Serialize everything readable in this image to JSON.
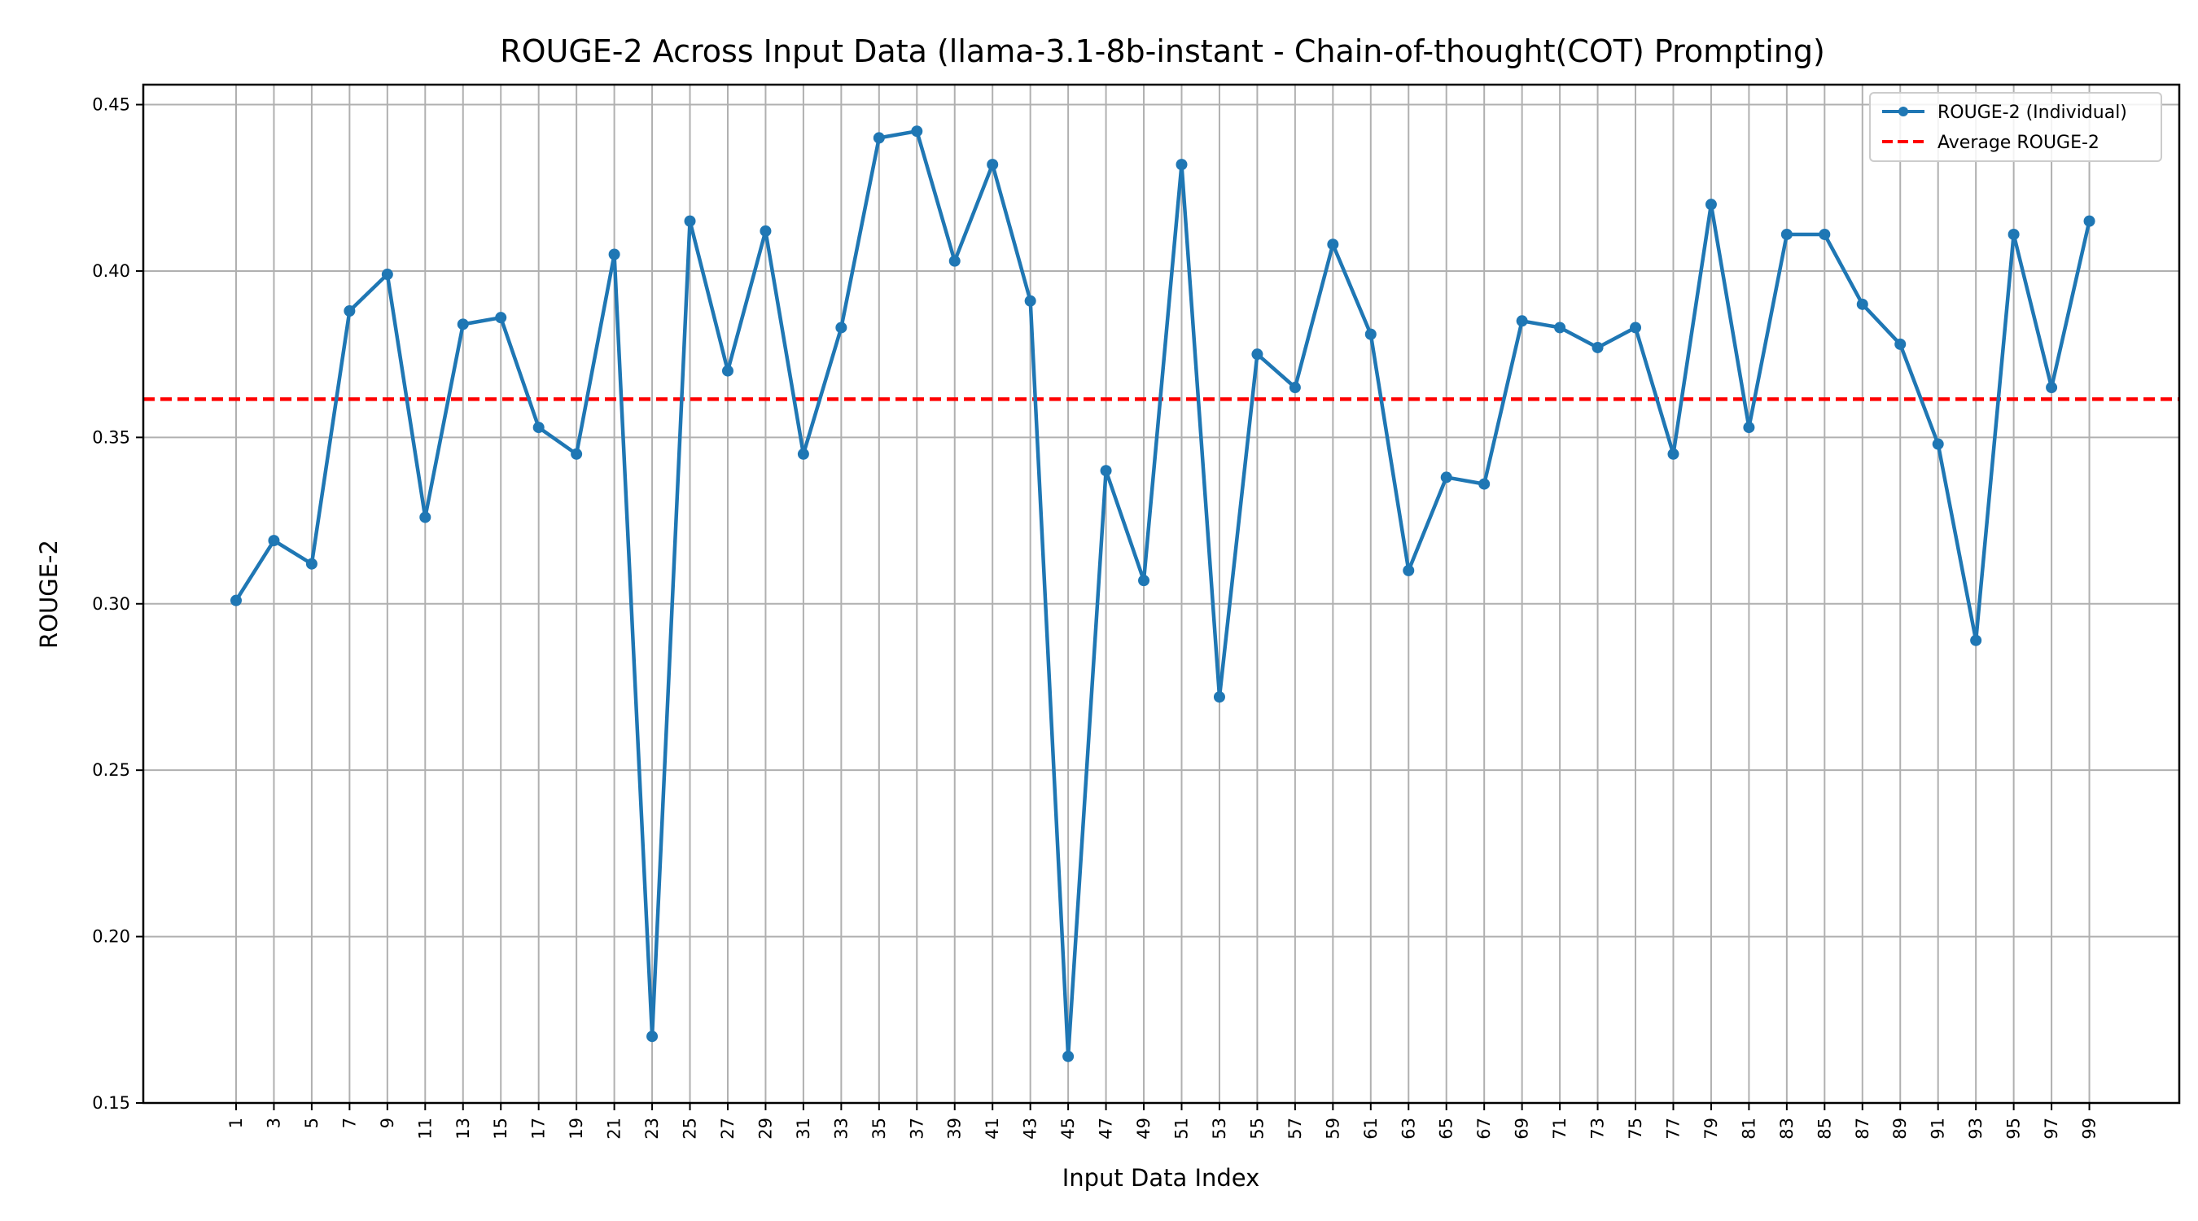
{
  "chart_data": {
    "type": "line",
    "title": "ROUGE-2 Across Input Data (llama-3.1-8b-instant - Chain-of-thought(COT) Prompting)",
    "xlabel": "Input Data Index",
    "ylabel": "ROUGE-2",
    "ylim": [
      0.15,
      0.456
    ],
    "yticks": [
      "0.15",
      "0.20",
      "0.25",
      "0.30",
      "0.35",
      "0.40",
      "0.45"
    ],
    "xticks": [
      "1",
      "3",
      "5",
      "7",
      "9",
      "11",
      "13",
      "15",
      "17",
      "19",
      "21",
      "23",
      "25",
      "27",
      "29",
      "31",
      "33",
      "35",
      "37",
      "39",
      "41",
      "43",
      "45",
      "47",
      "49",
      "51",
      "53",
      "55",
      "57",
      "59",
      "61",
      "63",
      "65",
      "67",
      "69",
      "71",
      "73",
      "75",
      "77",
      "79",
      "81",
      "83",
      "85",
      "87",
      "89",
      "91",
      "93",
      "95",
      "97",
      "99"
    ],
    "grid": true,
    "legend_position": "top-right",
    "series": [
      {
        "name": "ROUGE-2 (Individual)",
        "color": "#1f77b4",
        "style": "solid-with-markers",
        "x": [
          1,
          3,
          5,
          7,
          9,
          11,
          13,
          15,
          17,
          19,
          21,
          23,
          25,
          27,
          29,
          31,
          33,
          35,
          37,
          39,
          41,
          43,
          45,
          47,
          49,
          51,
          53,
          55,
          57,
          59,
          61,
          63,
          65,
          67,
          69,
          71,
          73,
          75,
          77,
          79,
          81,
          83,
          85,
          87,
          89,
          91,
          93,
          95,
          97,
          99
        ],
        "values": [
          0.301,
          0.319,
          0.312,
          0.388,
          0.399,
          0.326,
          0.384,
          0.386,
          0.353,
          0.345,
          0.405,
          0.17,
          0.415,
          0.37,
          0.412,
          0.345,
          0.383,
          0.44,
          0.442,
          0.403,
          0.432,
          0.391,
          0.164,
          0.34,
          0.307,
          0.432,
          0.272,
          0.375,
          0.365,
          0.408,
          0.381,
          0.31,
          0.338,
          0.336,
          0.385,
          0.383,
          0.377,
          0.383,
          0.345,
          0.42,
          0.353,
          0.411,
          0.411,
          0.39,
          0.378,
          0.348,
          0.289,
          0.411,
          0.365,
          0.415
        ]
      },
      {
        "name": "Average ROUGE-2",
        "color": "#ff0000",
        "style": "dashed",
        "values": [
          0.3615
        ]
      }
    ]
  }
}
